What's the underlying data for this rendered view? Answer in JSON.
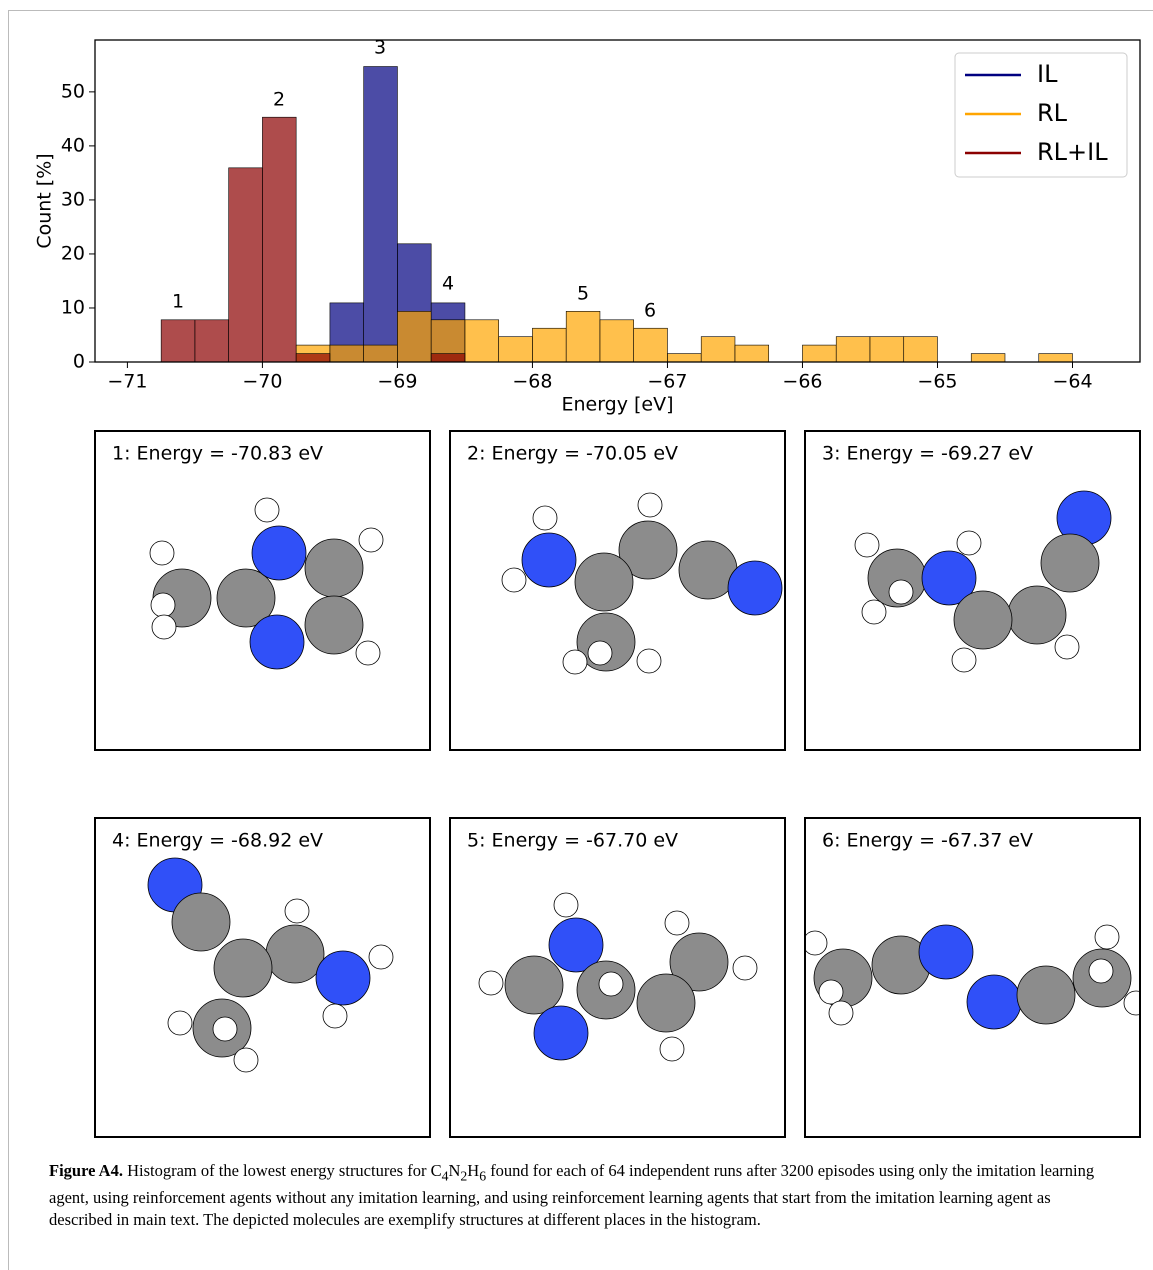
{
  "chart_data": {
    "type": "histogram",
    "xlabel": "Energy [eV]",
    "ylabel": "Count [%]",
    "bins": [
      -70.75,
      -70.5,
      -70.25,
      -70.0,
      -69.75,
      -69.5,
      -69.25,
      -69.0,
      -68.75,
      -68.5,
      -68.25,
      -68.0,
      -67.75,
      -67.5,
      -67.25,
      -67.0,
      -66.75,
      -66.5,
      -66.25,
      -66.0,
      -65.75,
      -65.5,
      -65.25,
      -65.0,
      -64.75,
      -64.5,
      -64.25,
      -64.0
    ],
    "series": [
      {
        "name": "IL",
        "color": "#000080",
        "values": [
          0,
          0,
          0,
          0,
          0,
          10.94,
          54.69,
          21.88,
          10.94,
          0,
          0,
          0,
          0,
          0,
          0,
          0,
          0,
          0,
          0,
          0,
          0,
          0,
          0,
          0,
          0,
          0,
          0
        ]
      },
      {
        "name": "RL",
        "color": "#ffa500",
        "values": [
          0,
          0,
          0,
          0,
          3.13,
          3.13,
          3.13,
          9.38,
          7.81,
          7.81,
          4.69,
          6.25,
          9.38,
          7.81,
          6.25,
          1.56,
          4.69,
          3.13,
          0,
          3.13,
          4.69,
          4.69,
          4.69,
          0,
          1.56,
          0,
          1.56
        ]
      },
      {
        "name": "RL+IL",
        "color": "#8b0000",
        "values": [
          7.81,
          7.81,
          35.94,
          45.31,
          1.56,
          0,
          0,
          0,
          1.56,
          0,
          0,
          0,
          0,
          0,
          0,
          0,
          0,
          0,
          0,
          0,
          0,
          0,
          0,
          0,
          0,
          0,
          0
        ]
      }
    ],
    "annotations": [
      "1",
      "2",
      "3",
      "4",
      "5",
      "6"
    ],
    "xlim": [
      -71.24,
      -63.5
    ],
    "ylim": [
      0,
      59.6
    ],
    "xticks": [
      {
        "value": -71,
        "label": "−71"
      },
      {
        "value": -70,
        "label": "−70"
      },
      {
        "value": -69,
        "label": "−69"
      },
      {
        "value": -68,
        "label": "−68"
      },
      {
        "value": -67,
        "label": "−67"
      },
      {
        "value": -66,
        "label": "−66"
      },
      {
        "value": -65,
        "label": "−65"
      },
      {
        "value": -64,
        "label": "−64"
      }
    ],
    "yticks": [
      0,
      10,
      20,
      30,
      40,
      50
    ],
    "legend": "upper right",
    "opacity": 0.7
  },
  "panels": [
    "1: Energy = -70.83 eV",
    "2: Energy = -70.05 eV",
    "3: Energy = -69.27 eV",
    "4: Energy = -68.92 eV",
    "5: Energy = -67.70 eV",
    "6: Energy = -67.37 eV"
  ],
  "caption": {
    "label": "Figure A4.",
    "before": " Histogram of the lowest energy structures for ",
    "formula": [
      "C",
      "4",
      "N",
      "2",
      "H",
      "6"
    ],
    "after": " found for each of 64 independent runs after 3200 episodes using only the imitation learning agent, using reinforcement agents without any imitation learning, and using reinforcement learning agents that start from the imitation learning agent as described in main text. The depicted molecules are exemplify structures at different places in the histogram."
  }
}
